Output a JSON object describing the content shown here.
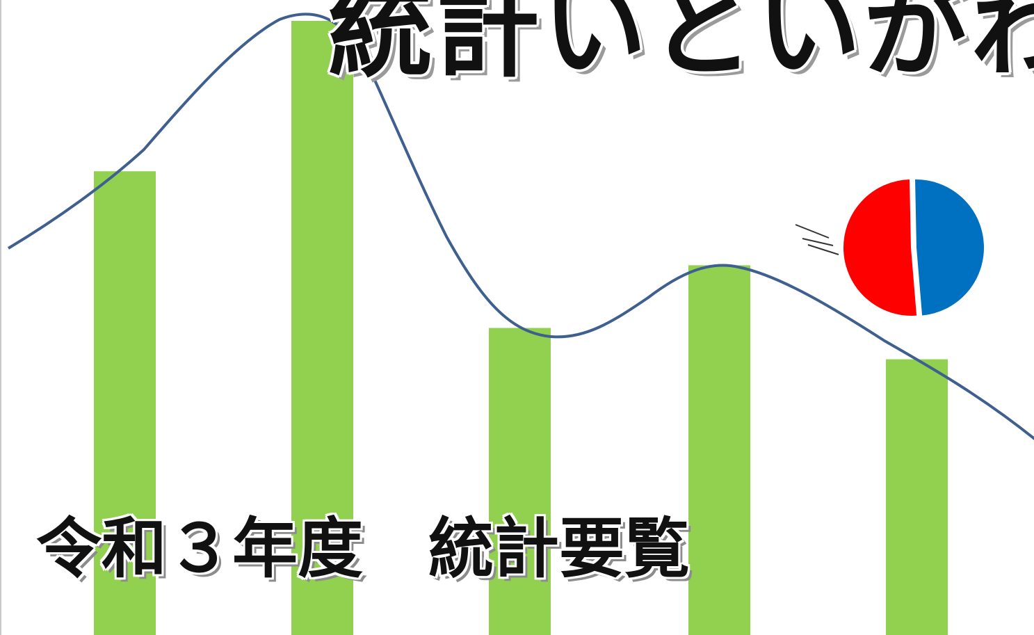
{
  "header": {
    "title": "統計いといがわ"
  },
  "document": {
    "title": "令和３年度　統計要覧"
  },
  "decoration": {
    "bar_color": "#92d050",
    "line_color": "#3f5f8f",
    "pie_colors": [
      "#ff0000",
      "#0070c0"
    ],
    "pie_shares": [
      0.51,
      0.49
    ],
    "bar_levels": [
      0.74,
      0.98,
      0.49,
      0.59,
      0.44
    ]
  }
}
